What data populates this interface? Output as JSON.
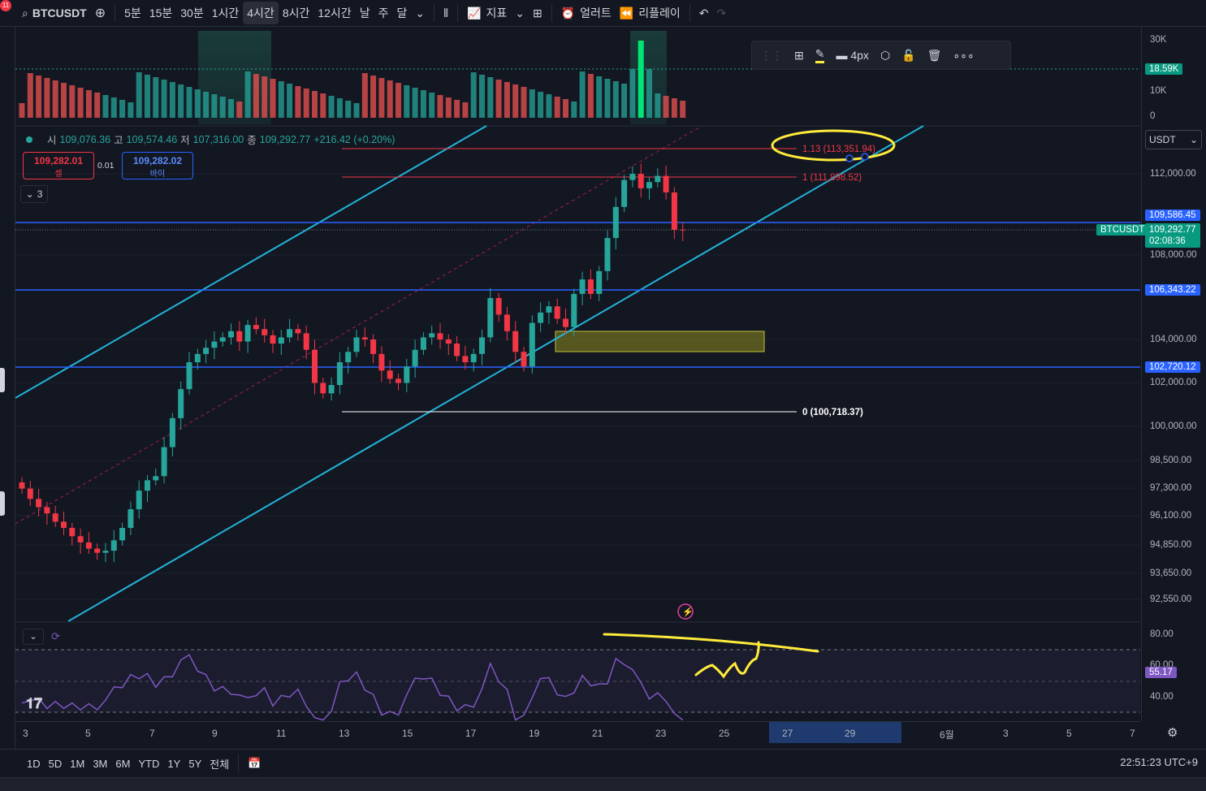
{
  "topbar": {
    "notif_count": "11",
    "symbol": "BTCUSDT",
    "intervals": [
      "5분",
      "15분",
      "30분",
      "1시간",
      "4시간",
      "8시간",
      "12시간",
      "날",
      "주",
      "달"
    ],
    "active_interval": "4시간",
    "indicators_label": "지표",
    "alert_label": "얼러트",
    "replay_label": "리플레이"
  },
  "ohlc": {
    "open_label": "시",
    "open": "109,076.36",
    "high_label": "고",
    "high": "109,574.46",
    "low_label": "저",
    "low": "107,316.00",
    "close_label": "종",
    "close": "109,292.77",
    "change": "+216.42 (+0.20%)"
  },
  "trade": {
    "sell_price": "109,282.01",
    "sell_label": "셀",
    "spread": "0.01",
    "buy_price": "109,282.02",
    "buy_label": "바이"
  },
  "collapse_count": "3",
  "drawing_toolbar": {
    "width_label": "4px"
  },
  "currency_select": "USDT",
  "volume_axis": [
    "30K",
    "18.59K",
    "10K",
    "0"
  ],
  "volume_current": "18.59K",
  "price_axis": [
    "112,000.00",
    "108,000.00",
    "104,000.00",
    "102,000.00",
    "100,000.00",
    "98,500.00",
    "97,300.00",
    "96,100.00",
    "94,850.00",
    "93,650.00",
    "92,550.00"
  ],
  "price_tags": {
    "level_1": "109,586.45",
    "current": "109,292.77",
    "countdown": "02:08:36",
    "symbol_tag": "BTCUSDT",
    "level_2": "106,343.22",
    "level_3": "102,720.12"
  },
  "fib_labels": {
    "f113": "1.13 (113,351.94)",
    "f1": "1 (111,898.52)",
    "f0": "0 (100,718.37)"
  },
  "rsi_axis": [
    "80.00",
    "60.00",
    "40.00"
  ],
  "rsi_current": "55.17",
  "time_axis": [
    "3",
    "5",
    "7",
    "9",
    "11",
    "13",
    "15",
    "17",
    "19",
    "21",
    "23",
    "25",
    "27",
    "29",
    "6월",
    "3",
    "5",
    "7"
  ],
  "ranges": [
    "1D",
    "5D",
    "1M",
    "3M",
    "6M",
    "YTD",
    "1Y",
    "5Y",
    "전체"
  ],
  "clock": "22:51:23 UTC+9",
  "colors": {
    "up": "#26a69a",
    "down": "#f23645",
    "channel": "#22b3d8",
    "hline": "#2962ff",
    "highlight": "#ffeb3b",
    "rsi": "#7e57c2"
  },
  "chart_data": {
    "type": "candlestick",
    "symbol": "BTCUSDT",
    "interval": "4시간",
    "ohlc_close_sequence": [
      96800,
      96300,
      95900,
      95600,
      95200,
      94900,
      94500,
      94200,
      93900,
      93700,
      93800,
      94300,
      94900,
      95800,
      96700,
      97200,
      97400,
      98800,
      100200,
      101600,
      102900,
      103300,
      103600,
      103900,
      104100,
      104400,
      103900,
      104700,
      104500,
      104200,
      103800,
      104100,
      104500,
      104300,
      103500,
      101900,
      101400,
      101800,
      102900,
      103400,
      104100,
      104000,
      103300,
      102500,
      102100,
      101900,
      102700,
      103500,
      104100,
      104300,
      104000,
      103800,
      103200,
      102900,
      103300,
      104100,
      106000,
      105200,
      104400,
      103400,
      102700,
      104800,
      105300,
      105600,
      105000,
      104600,
      106200,
      106900,
      106200,
      107300,
      108900,
      110400,
      111700,
      112000,
      111300,
      111600,
      111900,
      111100,
      109300,
      109292.77
    ],
    "horizontal_lines": [
      109586.45,
      106343.22,
      102720.12
    ],
    "fib_levels": [
      {
        "level": "0",
        "price": 100718.37
      },
      {
        "level": "1",
        "price": 111898.52
      },
      {
        "level": "1.13",
        "price": 113351.94
      }
    ],
    "ylim": [
      92000,
      113800
    ]
  }
}
